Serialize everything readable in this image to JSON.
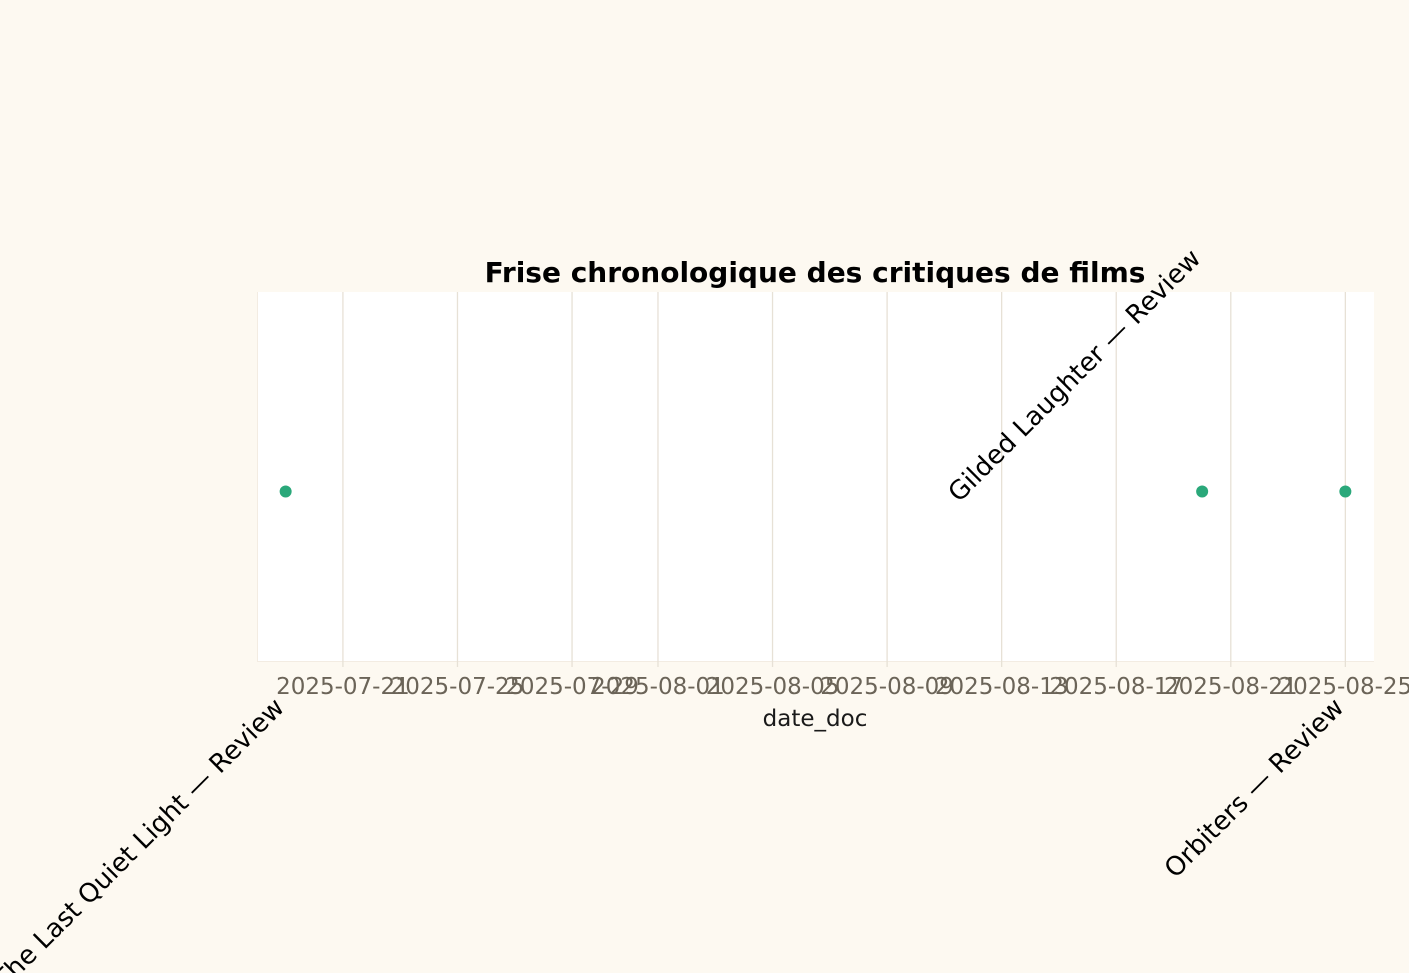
{
  "chart_data": {
    "type": "scatter",
    "title": "Frise chronologique des critiques de films",
    "xlabel": "date_doc",
    "ylabel": "",
    "x_tick_labels": [
      "2025-07-21",
      "2025-07-25",
      "2025-07-29",
      "2025-08-01",
      "2025-08-05",
      "2025-08-09",
      "2025-08-13",
      "2025-08-17",
      "2025-08-21",
      "2025-08-25"
    ],
    "xlim": [
      "2025-07-18",
      "2025-08-26"
    ],
    "grid": true,
    "points": [
      {
        "x": "2025-07-19",
        "label": "The Last Quiet Light — Review"
      },
      {
        "x": "2025-08-20",
        "label": "Gilded Laughter — Review"
      },
      {
        "x": "2025-08-25",
        "label": "Orbiters — Review"
      }
    ],
    "colors": {
      "point": "#2aa87a",
      "background": "#fdf9f1",
      "plot_area": "#ffffff",
      "grid": "#e7e1d6",
      "tick_text": "#6b6458",
      "text": "#1a1a1a"
    }
  }
}
